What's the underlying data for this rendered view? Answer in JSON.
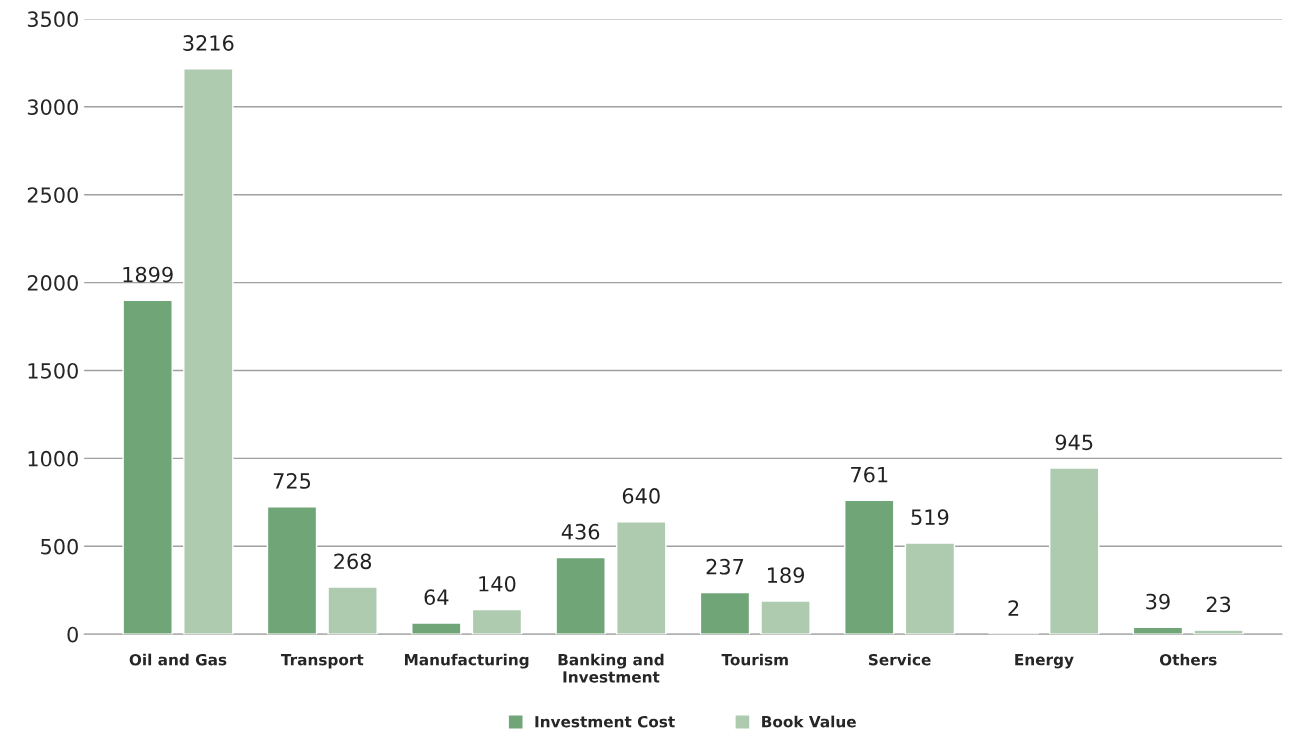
{
  "chart_data": {
    "type": "bar",
    "categories": [
      "Oil and Gas",
      "Transport",
      "Manufacturing",
      "Banking and\nInvestment",
      "Tourism",
      "Service",
      "Energy",
      "Others"
    ],
    "series": [
      {
        "name": "Investment Cost",
        "color": "#70a578",
        "values": [
          1899,
          725,
          64,
          436,
          237,
          761,
          2,
          39
        ]
      },
      {
        "name": "Book Value",
        "color": "#aecbb0",
        "values": [
          3216,
          268,
          140,
          640,
          189,
          519,
          945,
          23
        ]
      }
    ],
    "ylim": [
      0,
      3500
    ],
    "yticks": [
      0,
      500,
      1000,
      1500,
      2000,
      2500,
      3000,
      3500
    ],
    "grid": "y",
    "legend": "bottom",
    "data_labels": true
  }
}
